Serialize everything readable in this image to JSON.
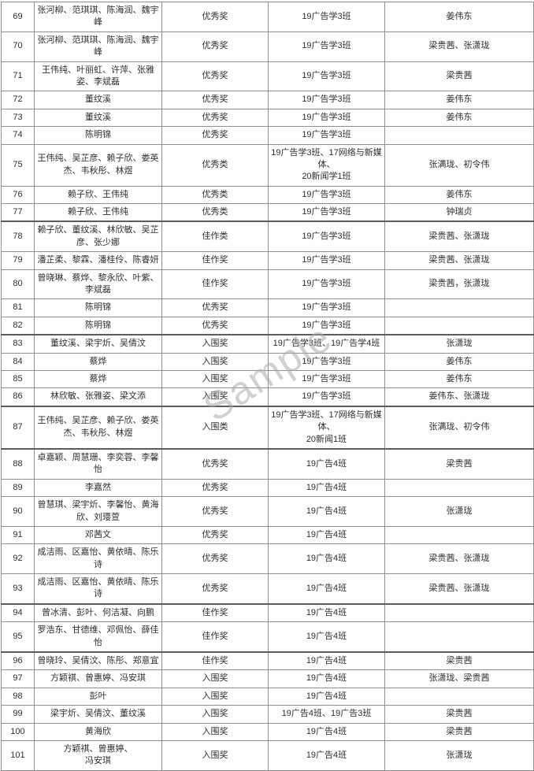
{
  "watermark": "Sample",
  "table": {
    "columns": [
      "no",
      "names",
      "award",
      "class_name",
      "teachers"
    ],
    "rows": [
      {
        "no": "69",
        "names": "张河柳、范琪琪、陈海润、魏宇峰",
        "award": "优秀奖",
        "class_name": "19广告学3班",
        "teachers": "姜伟东",
        "section_start": false
      },
      {
        "no": "70",
        "names": "张河柳、范琪琪、陈海润、魏宇峰",
        "award": "优秀奖",
        "class_name": "19广告学3班",
        "teachers": "梁贵茜、张潇珑",
        "section_start": false
      },
      {
        "no": "71",
        "names": "王伟纯、叶丽虹、许萍、张雅姿、李斌磊",
        "award": "优秀奖",
        "class_name": "19广告学3班",
        "teachers": "梁贵茜",
        "section_start": false
      },
      {
        "no": "72",
        "names": "董纹溪",
        "award": "优秀奖",
        "class_name": "19广告学3班",
        "teachers": "姜伟东",
        "section_start": false
      },
      {
        "no": "73",
        "names": "董纹溪",
        "award": "优秀奖",
        "class_name": "19广告学3班",
        "teachers": "姜伟东",
        "section_start": false
      },
      {
        "no": "74",
        "names": "陈明锦",
        "award": "优秀奖",
        "class_name": "19广告学3班",
        "teachers": "",
        "section_start": false
      },
      {
        "no": "75",
        "names": "王伟纯、吴芷彦、赖子欣、娄英杰、韦秋彤、林煜",
        "award": "优秀类",
        "class_name": "19广告学3班、17网络与新媒体、\n20新闻学1班",
        "teachers": "张满珑、初令伟",
        "section_start": false
      },
      {
        "no": "76",
        "names": "赖子欣、王伟纯",
        "award": "优秀类",
        "class_name": "19广告学3班",
        "teachers": "姜伟东",
        "section_start": false
      },
      {
        "no": "77",
        "names": "赖子欣、王伟纯",
        "award": "优秀类",
        "class_name": "19广告学3班",
        "teachers": "钟瑞贞",
        "section_start": false
      },
      {
        "no": "78",
        "names": "赖子欣、董纹溪、林欣敏、吴芷彦、张少娜",
        "award": "佳作类",
        "class_name": "19广告学3班",
        "teachers": "梁贵茜、张潇珑",
        "section_start": true
      },
      {
        "no": "79",
        "names": "潘芷柔、黎霖、潘桂伶、陈睿妍",
        "award": "佳作奖",
        "class_name": "19广告学3班",
        "teachers": "梁贵茜、张潇珑",
        "section_start": false
      },
      {
        "no": "80",
        "names": "曾晓琳、蔡烨、黎永欣、叶紫、李斌磊",
        "award": "佳作奖",
        "class_name": "19广告学3班",
        "teachers": "梁贵茜，张潇珑",
        "section_start": false
      },
      {
        "no": "81",
        "names": "陈明锦",
        "award": "优秀奖",
        "class_name": "19广告学3班",
        "teachers": "",
        "section_start": false
      },
      {
        "no": "82",
        "names": "陈明锦",
        "award": "优秀奖",
        "class_name": "19广告学3班",
        "teachers": "",
        "section_start": false
      },
      {
        "no": "83",
        "names": "董纹溪、梁宇炘、吴倩汶",
        "award": "入围奖",
        "class_name": "19广告学3班、19广告学4班",
        "teachers": "张潇珑",
        "section_start": true
      },
      {
        "no": "84",
        "names": "蔡烨",
        "award": "入围奖",
        "class_name": "19广告学3班",
        "teachers": "姜伟东",
        "section_start": false
      },
      {
        "no": "85",
        "names": "蔡烨",
        "award": "入围奖",
        "class_name": "19广告学3班",
        "teachers": "姜伟东",
        "section_start": false
      },
      {
        "no": "86",
        "names": "林欣敏、张雅姿、梁文添",
        "award": "入围奖",
        "class_name": "19广告学3班",
        "teachers": "姜伟东、张潇珑",
        "section_start": false
      },
      {
        "no": "87",
        "names": "王伟纯、吴芷彦、赖子欣、娄英杰、韦秋彤、林煜",
        "award": "入围类",
        "class_name": "19广告学3班、17网络与新媒体、\n20新闻1班",
        "teachers": "张满珑、初令伟",
        "section_start": true
      },
      {
        "no": "88",
        "names": "卓嘉颖、周慧珊、李奕蓉、李馨怡",
        "award": "优秀奖",
        "class_name": "19广告4班",
        "teachers": "梁贵茜",
        "section_start": true
      },
      {
        "no": "89",
        "names": "李嘉然",
        "award": "优秀奖",
        "class_name": "19广告4班",
        "teachers": "",
        "section_start": false
      },
      {
        "no": "90",
        "names": "曾慧琪、梁宇炘、李馨怡、黄海欣、刘璎萱",
        "award": "优秀奖",
        "class_name": "19广告4班",
        "teachers": "张潇珑",
        "section_start": false
      },
      {
        "no": "91",
        "names": "邓茜文",
        "award": "优秀奖",
        "class_name": "19广告4班",
        "teachers": "",
        "section_start": false
      },
      {
        "no": "92",
        "names": "成洁雨、区嘉怡、黄依晴、陈乐诗",
        "award": "优秀奖",
        "class_name": "19广告4班",
        "teachers": "梁贵茜、张潇珑",
        "section_start": false
      },
      {
        "no": "93",
        "names": "成洁雨、区嘉怡、黄依晴、陈乐诗",
        "award": "优秀奖",
        "class_name": "19广告4班",
        "teachers": "梁贵茜、张潇珑",
        "section_start": false
      },
      {
        "no": "94",
        "names": "曾冰清、彭叶、何洁凝、向鹏",
        "award": "佳作奖",
        "class_name": "19广告4班",
        "teachers": "",
        "section_start": true
      },
      {
        "no": "95",
        "names": "罗浩东、甘德维、邓佩怡、薛佳怡",
        "award": "佳作奖",
        "class_name": "19广告4班",
        "teachers": "",
        "section_start": false
      },
      {
        "no": "96",
        "names": "曾晓玲、吴倩汶、陈彤、郑意宜",
        "award": "佳作奖",
        "class_name": "19广告4班",
        "teachers": "梁贵茜",
        "section_start": true
      },
      {
        "no": "97",
        "names": "方颖祺、曾惠婷、冯安琪",
        "award": "入围奖",
        "class_name": "19广告4班",
        "teachers": "张潇珑、梁贵茜",
        "section_start": false
      },
      {
        "no": "98",
        "names": "彭叶",
        "award": "入围奖",
        "class_name": "19广告4班",
        "teachers": "",
        "section_start": false
      },
      {
        "no": "99",
        "names": "梁宇炘、吴倩汶、董纹溪",
        "award": "入围奖",
        "class_name": "19广告4班、19广告3班",
        "teachers": "梁贵茜",
        "section_start": false
      },
      {
        "no": "100",
        "names": "黄海欣",
        "award": "入围奖",
        "class_name": "19广告4班",
        "teachers": "梁贵茜",
        "section_start": false
      },
      {
        "no": "101",
        "names": "方颖祺、曾惠婷、\n冯安琪",
        "award": "入围奖",
        "class_name": "19广告4班",
        "teachers": "张潇珑",
        "section_start": false
      }
    ]
  }
}
